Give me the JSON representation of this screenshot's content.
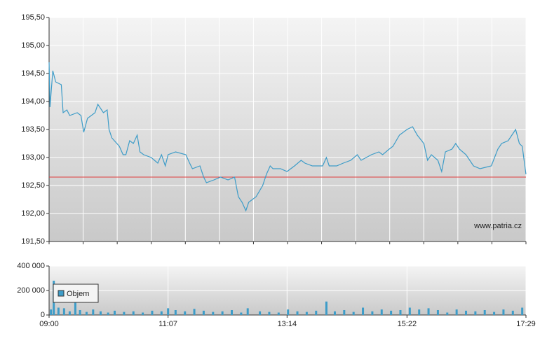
{
  "chart_data": [
    {
      "type": "line",
      "color": "#3d9cc8",
      "x": [
        "09:00",
        "09:01",
        "09:04",
        "09:07",
        "09:13",
        "09:15",
        "09:19",
        "09:22",
        "09:30",
        "09:34",
        "09:37",
        "09:41",
        "09:49",
        "09:52",
        "09:58",
        "10:02",
        "10:04",
        "10:07",
        "10:15",
        "10:19",
        "10:22",
        "10:26",
        "10:30",
        "10:34",
        "10:37",
        "10:41",
        "10:49",
        "10:56",
        "11:00",
        "11:04",
        "11:07",
        "11:15",
        "11:26",
        "11:30",
        "11:33",
        "11:41",
        "11:45",
        "11:48",
        "11:56",
        "12:03",
        "12:11",
        "12:18",
        "12:22",
        "12:26",
        "12:30",
        "12:33",
        "12:41",
        "12:48",
        "12:52",
        "12:56",
        "12:59",
        "13:07",
        "13:14",
        "13:22",
        "13:29",
        "13:33",
        "13:41",
        "13:52",
        "13:56",
        "13:59",
        "14:07",
        "14:14",
        "14:22",
        "14:29",
        "14:33",
        "14:44",
        "14:52",
        "14:56",
        "15:03",
        "15:07",
        "15:14",
        "15:22",
        "15:28",
        "15:33",
        "15:40",
        "15:44",
        "15:48",
        "15:55",
        "15:59",
        "16:03",
        "16:10",
        "16:14",
        "16:18",
        "16:25",
        "16:33",
        "16:40",
        "16:52",
        "16:59",
        "17:03",
        "17:10",
        "17:18",
        "17:22",
        "17:25",
        "17:29"
      ],
      "values": [
        194.7,
        193.9,
        194.55,
        194.35,
        194.3,
        193.8,
        193.85,
        193.75,
        193.8,
        193.75,
        193.45,
        193.7,
        193.8,
        193.95,
        193.8,
        193.85,
        193.5,
        193.35,
        193.2,
        193.05,
        193.05,
        193.3,
        193.25,
        193.4,
        193.1,
        193.05,
        193.0,
        192.9,
        193.05,
        192.85,
        193.05,
        193.1,
        193.05,
        192.9,
        192.8,
        192.85,
        192.65,
        192.55,
        192.6,
        192.65,
        192.6,
        192.65,
        192.3,
        192.2,
        192.05,
        192.2,
        192.3,
        192.5,
        192.7,
        192.85,
        192.8,
        192.8,
        192.75,
        192.85,
        192.95,
        192.9,
        192.85,
        192.85,
        193.0,
        192.85,
        192.85,
        192.9,
        192.95,
        193.05,
        192.95,
        193.05,
        193.1,
        193.05,
        193.15,
        193.2,
        193.4,
        193.5,
        193.55,
        193.4,
        193.25,
        192.95,
        193.05,
        192.95,
        192.75,
        193.1,
        193.15,
        193.25,
        193.15,
        193.05,
        192.85,
        192.8,
        192.85,
        193.15,
        193.25,
        193.3,
        193.5,
        193.25,
        193.2,
        192.7
      ],
      "xlim": [
        "09:00",
        "17:29"
      ],
      "ylim": [
        191.5,
        195.5
      ],
      "yticks": [
        {
          "value": 191.5,
          "label": "191,50"
        },
        {
          "value": 192,
          "label": "192,00"
        },
        {
          "value": 192.5,
          "label": "192,50"
        },
        {
          "value": 193,
          "label": "193,00"
        },
        {
          "value": 193.5,
          "label": "193,50"
        },
        {
          "value": 194,
          "label": "194,00"
        },
        {
          "value": 194.5,
          "label": "194,50"
        },
        {
          "value": 195,
          "label": "195,00"
        },
        {
          "value": 195.5,
          "label": "195,50"
        }
      ],
      "reference_line": {
        "value": 192.65,
        "color": "#e03a3a"
      },
      "watermark": "www.patria.cz",
      "grid": true
    },
    {
      "type": "bar",
      "x": [
        "09:02",
        "09:05",
        "09:10",
        "09:16",
        "09:22",
        "09:28",
        "09:33",
        "09:40",
        "09:47",
        "09:55",
        "10:03",
        "10:10",
        "10:20",
        "10:30",
        "10:40",
        "10:50",
        "11:00",
        "11:07",
        "11:15",
        "11:25",
        "11:35",
        "11:45",
        "11:55",
        "12:05",
        "12:15",
        "12:25",
        "12:32",
        "12:45",
        "12:55",
        "13:05",
        "13:15",
        "13:25",
        "13:35",
        "13:45",
        "13:56",
        "14:05",
        "14:15",
        "14:25",
        "14:35",
        "14:45",
        "14:55",
        "15:05",
        "15:15",
        "15:25",
        "15:35",
        "15:45",
        "15:55",
        "16:05",
        "16:15",
        "16:25",
        "16:35",
        "16:45",
        "16:55",
        "17:05",
        "17:15",
        "17:25"
      ],
      "series": [
        {
          "name": "Objem",
          "color": "#3d9cc8",
          "values": [
            45000,
            280000,
            60000,
            55000,
            30000,
            140000,
            40000,
            25000,
            45000,
            30000,
            20000,
            35000,
            25000,
            30000,
            20000,
            35000,
            30000,
            55000,
            40000,
            30000,
            50000,
            35000,
            25000,
            30000,
            40000,
            20000,
            55000,
            30000,
            25000,
            20000,
            45000,
            30000,
            25000,
            35000,
            110000,
            30000,
            40000,
            25000,
            60000,
            30000,
            45000,
            35000,
            40000,
            60000,
            45000,
            55000,
            40000,
            20000,
            45000,
            35000,
            30000,
            40000,
            25000,
            45000,
            35000,
            60000
          ]
        }
      ],
      "xlim": [
        "09:00",
        "17:29"
      ],
      "xticks": [
        "09:00",
        "11:07",
        "13:14",
        "15:22",
        "17:29"
      ],
      "ylim": [
        0,
        400000
      ],
      "yticks": [
        0,
        {
          "value": 200000,
          "label": "200 000"
        },
        {
          "value": 400000,
          "label": "400 000"
        }
      ],
      "grid": true
    }
  ]
}
